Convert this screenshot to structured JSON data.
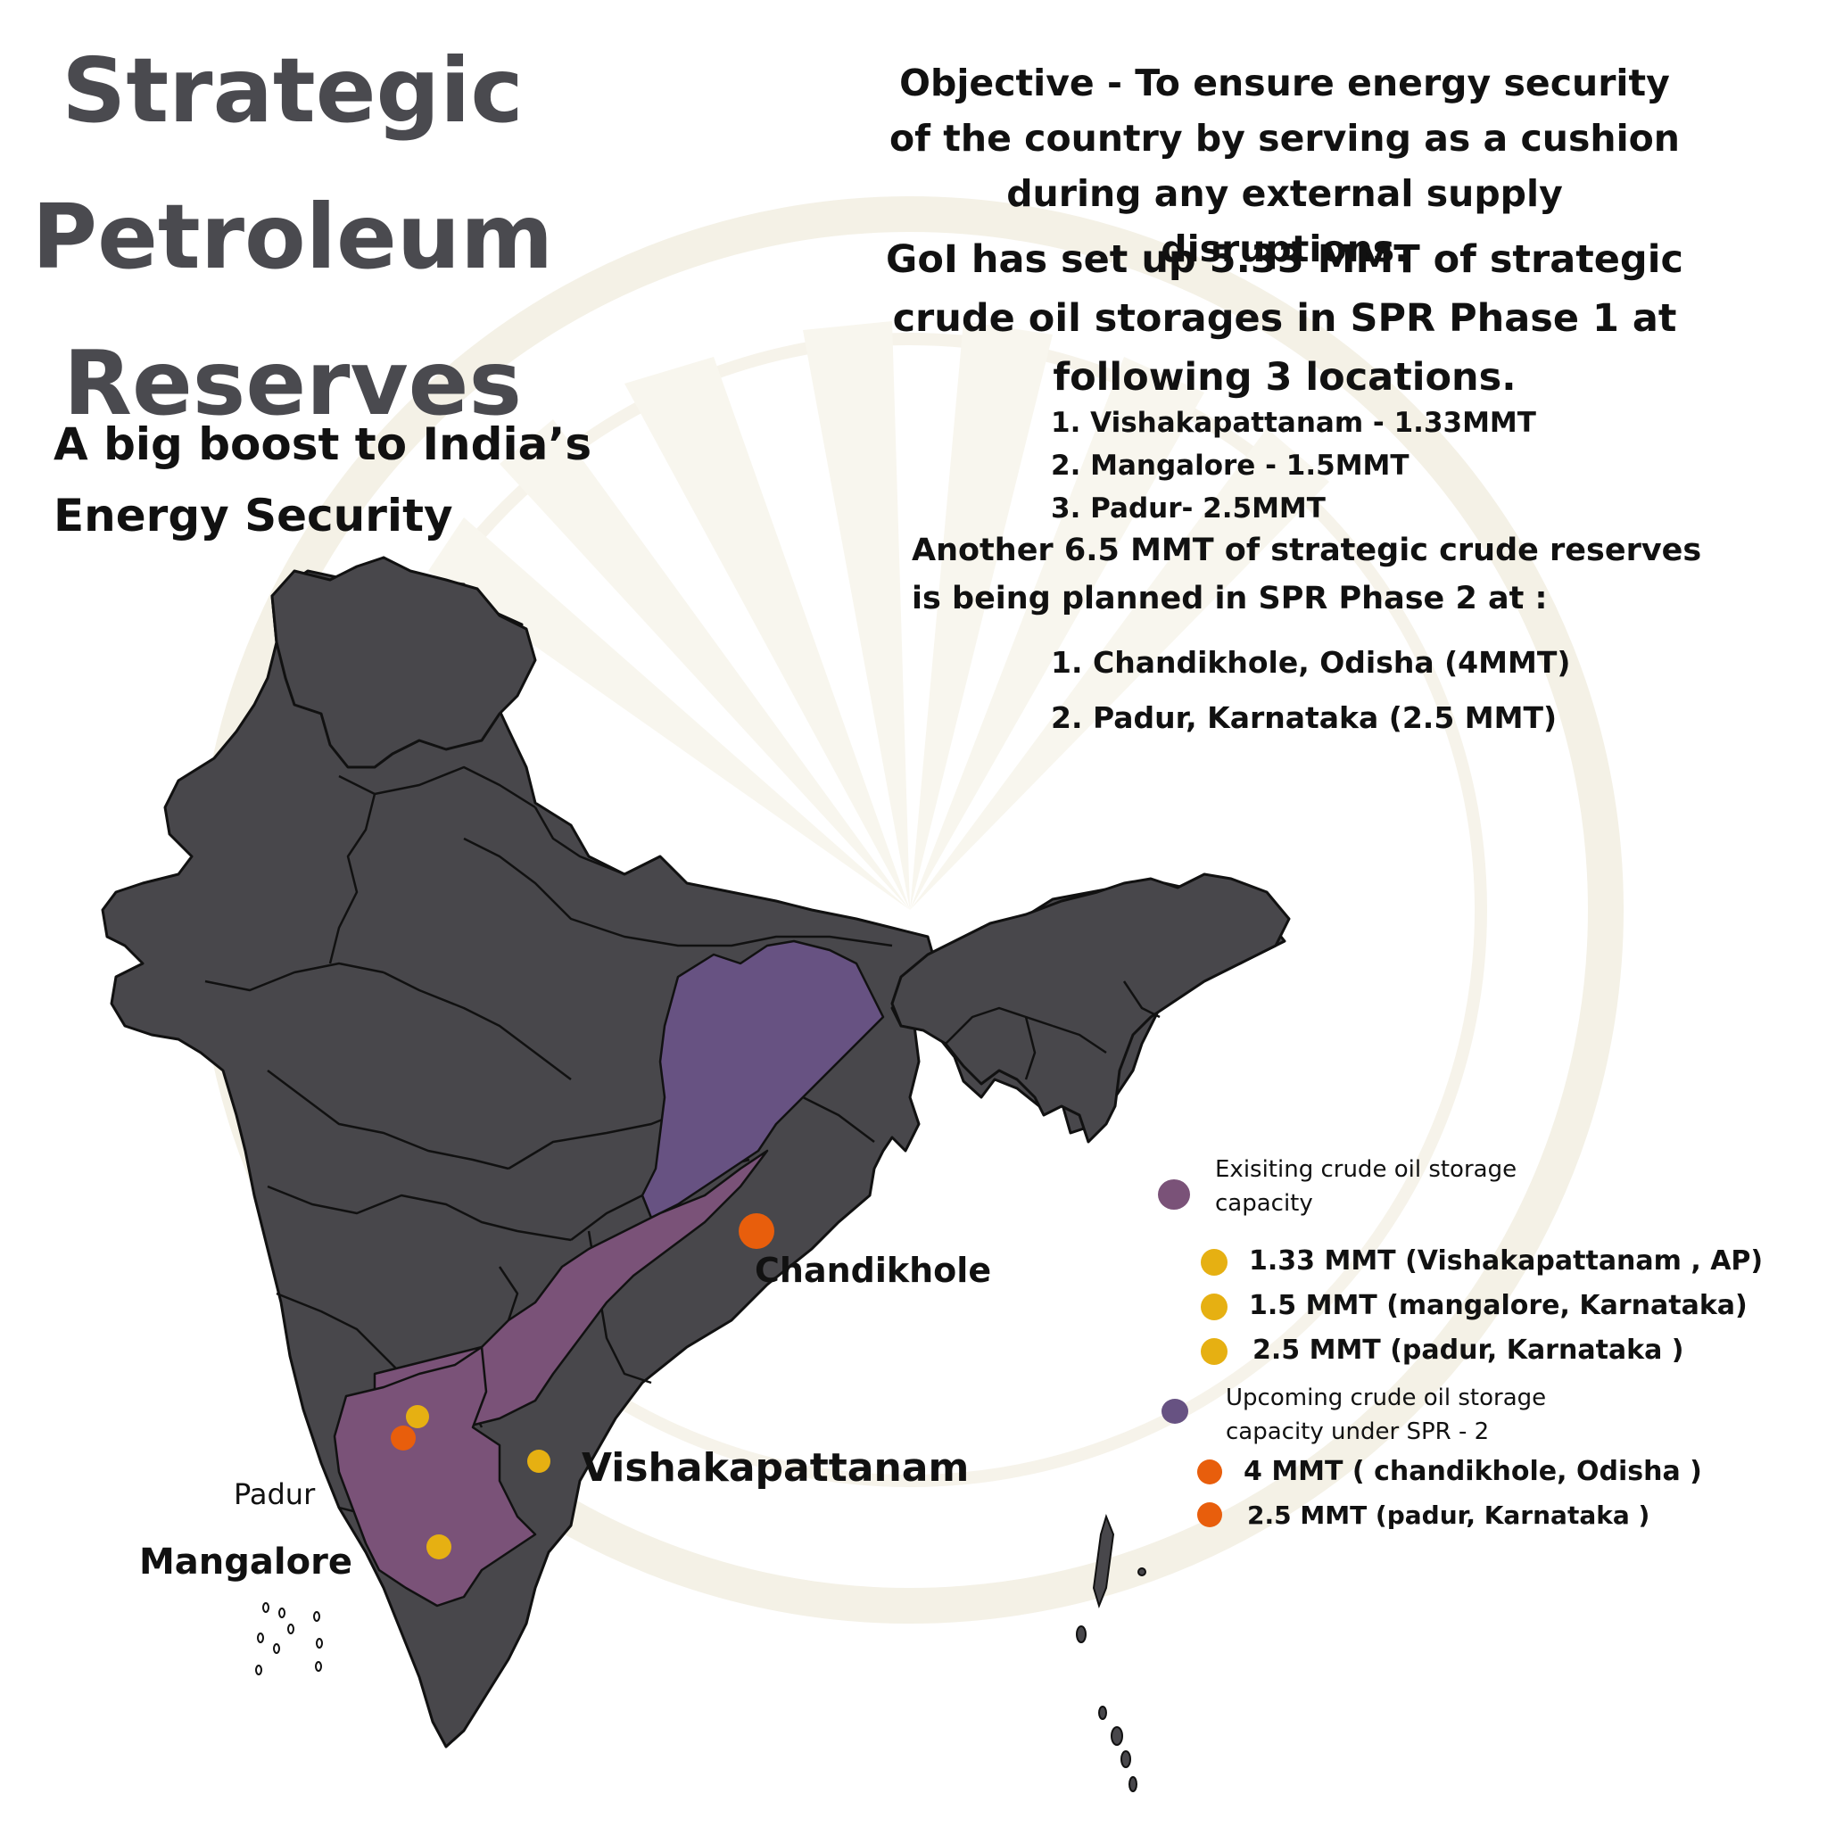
{
  "title": {
    "line1": "Strategic",
    "line2": "Petroleum",
    "line3": "Reserves"
  },
  "subtitle": {
    "line1": "A big boost to India’s",
    "line2": "Energy Security"
  },
  "objective": {
    "line1": "Objective -  To ensure energy security",
    "line2": "of the country by serving as a cushion",
    "line3": "during any external supply disruptions."
  },
  "phase1": {
    "line1": "GoI has set up 5.33 MMT of strategic",
    "line2": "crude oil storages in SPR Phase 1 at",
    "line3": "following 3 locations.",
    "locations": [
      "1. Vishakapattanam - 1.33MMT",
      "2. Mangalore - 1.5MMT",
      "3. Padur- 2.5MMT"
    ]
  },
  "phase2": {
    "line1": "Another 6.5 MMT of strategic crude reserves",
    "line2": "is being planned in SPR Phase 2 at :",
    "locations": [
      "1. Chandikhole, Odisha (4MMT)",
      "2. Padur, Karnataka (2.5 MMT)"
    ]
  },
  "legend": {
    "existing_heading_line1": "Exisiting crude oil storage",
    "existing_heading_line2": "capacity",
    "existing_items": [
      "1.33 MMT (Vishakapattanam , AP)",
      "1.5 MMT (mangalore, Karnataka)",
      "2.5 MMT (padur, Karnataka )"
    ],
    "upcoming_heading_line1": "Upcoming crude oil storage",
    "upcoming_heading_line2": "capacity under SPR - 2",
    "upcoming_items": [
      "4 MMT ( chandikhole, Odisha )",
      "2.5 MMT (padur, Karnataka )"
    ]
  },
  "map_labels": {
    "chandikhole": "Chandikhole",
    "vishakapattanam": "Vishakapattanam",
    "padur": "Padur",
    "mangalore": "Mangalore"
  },
  "colors": {
    "land": "#48474b",
    "existing_region": "#7a5278",
    "upcoming_region": "#675282",
    "existing_marker": "#e6b012",
    "upcoming_marker": "#e85e0c",
    "title": "#4a4a4f"
  }
}
